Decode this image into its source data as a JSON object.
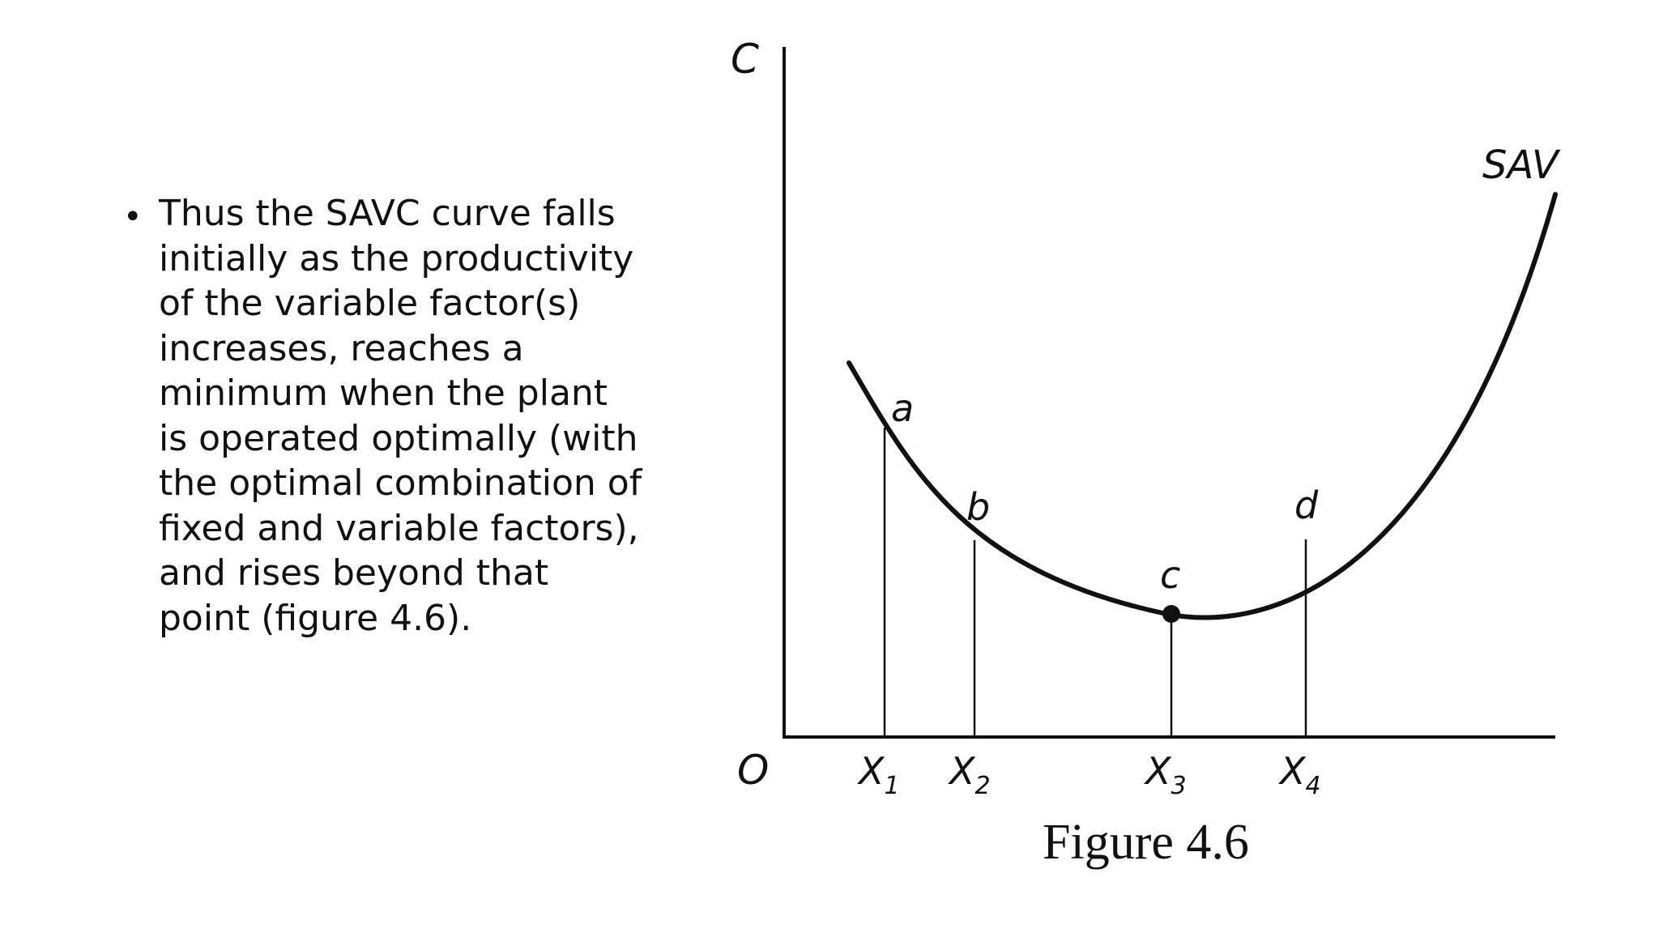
{
  "slide": {
    "bullet_text": "Thus the SAVC curve falls\ninitially as the productivity\nof the variable factor(s)\nincreases, reaches a\nminimum when the plant\nis operated optimally (with\nthe optimal combination of\nfixed and variable factors),\nand rises beyond that\npoint (figure 4.6)."
  },
  "figure": {
    "y_axis_label": "C",
    "origin_label": "O",
    "curve_label": "SAV",
    "caption": "Figure 4.6",
    "points": [
      {
        "label": "a",
        "x_label": "X",
        "x_sub": "1"
      },
      {
        "label": "b",
        "x_label": "X",
        "x_sub": "2"
      },
      {
        "label": "c",
        "x_label": "X",
        "x_sub": "3"
      },
      {
        "label": "d",
        "x_label": "X",
        "x_sub": "4"
      }
    ],
    "colors": {
      "ink": "#111111",
      "background": "#ffffff"
    }
  }
}
